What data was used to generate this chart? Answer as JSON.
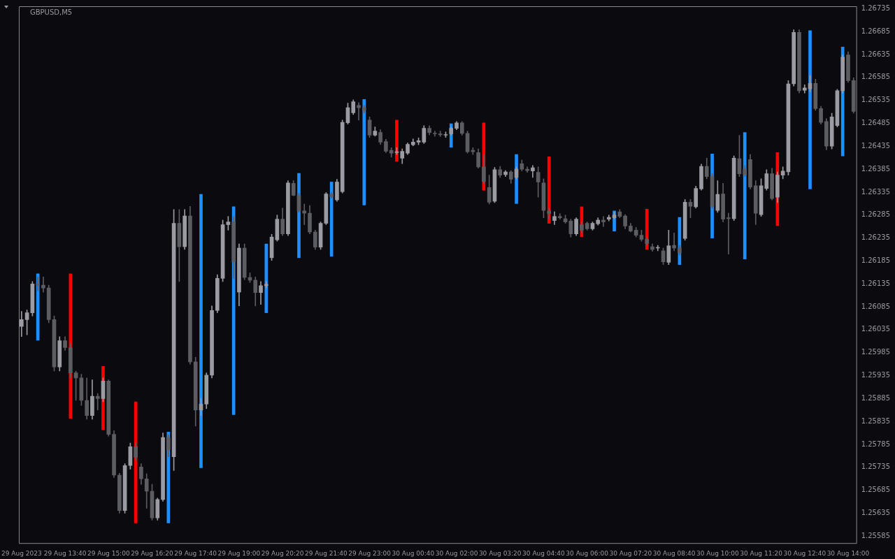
{
  "chart_data": {
    "type": "candlestick",
    "title": "GBPUSD,M5",
    "categories": [
      "29 Aug 2023",
      null,
      null,
      null,
      null,
      null,
      null,
      null,
      "29 Aug 13:40",
      null,
      null,
      null,
      null,
      null,
      null,
      null,
      "29 Aug 15:00",
      null,
      null,
      null,
      null,
      null,
      null,
      null,
      "29 Aug 16:20",
      null,
      null,
      null,
      null,
      null,
      null,
      null,
      "29 Aug 17:40",
      null,
      null,
      null,
      null,
      null,
      null,
      null,
      "29 Aug 19:00",
      null,
      null,
      null,
      null,
      null,
      null,
      null,
      "29 Aug 20:20",
      null,
      null,
      null,
      null,
      null,
      null,
      null,
      "29 Aug 21:40",
      null,
      null,
      null,
      null,
      null,
      null,
      null,
      "29 Aug 23:00",
      null,
      null,
      null,
      null,
      null,
      null,
      null,
      "30 Aug 00:40",
      null,
      null,
      null,
      null,
      null,
      null,
      null,
      "30 Aug 02:00",
      null,
      null,
      null,
      null,
      null,
      null,
      null,
      "30 Aug 03:20",
      null,
      null,
      null,
      null,
      null,
      null,
      null,
      "30 Aug 04:40",
      null,
      null,
      null,
      null,
      null,
      null,
      null,
      "30 Aug 06:00",
      null,
      null,
      null,
      null,
      null,
      null,
      null,
      "30 Aug 07:20",
      null,
      null,
      null,
      null,
      null,
      null,
      null,
      "30 Aug 08:40",
      null,
      null,
      null,
      null,
      null,
      null,
      null,
      "30 Aug 10:00",
      null,
      null,
      null,
      null,
      null,
      null,
      null,
      "30 Aug 11:20",
      null,
      null,
      null,
      null,
      null,
      null,
      null,
      "30 Aug 12:40",
      null,
      null,
      null,
      null,
      null,
      null,
      null,
      "30 Aug 14:00",
      null
    ],
    "ohlc": [
      [
        1.26042,
        1.26075,
        1.2602,
        1.26057
      ],
      [
        1.26057,
        1.26078,
        1.26024,
        1.26072
      ],
      [
        1.26072,
        1.2614,
        1.26065,
        1.26135
      ],
      [
        1.26135,
        1.2615,
        1.2612,
        1.26132
      ],
      [
        1.26132,
        1.2615,
        1.26117,
        1.26126
      ],
      [
        1.26126,
        1.26132,
        1.2605,
        1.26057
      ],
      [
        1.26057,
        1.26065,
        1.25945,
        1.25954
      ],
      [
        1.25954,
        1.2602,
        1.25945,
        1.26011
      ],
      [
        1.26011,
        1.2602,
        1.2599,
        1.25996
      ],
      [
        1.25996,
        1.26005,
        1.2593,
        1.25941
      ],
      [
        1.25941,
        1.25945,
        1.25881,
        1.2593
      ],
      [
        1.2593,
        1.25938,
        1.2587,
        1.25881
      ],
      [
        1.25881,
        1.2593,
        1.2584,
        1.25848
      ],
      [
        1.25848,
        1.25926,
        1.2584,
        1.2589
      ],
      [
        1.2589,
        1.25896,
        1.2586,
        1.25885
      ],
      [
        1.25885,
        1.2593,
        1.25878,
        1.25923
      ],
      [
        1.25923,
        1.25926,
        1.25803,
        1.25807
      ],
      [
        1.25807,
        1.25815,
        1.25713,
        1.25718
      ],
      [
        1.25718,
        1.25722,
        1.25635,
        1.25641
      ],
      [
        1.25641,
        1.25743,
        1.25635,
        1.25739
      ],
      [
        1.25739,
        1.25788,
        1.25731,
        1.2578
      ],
      [
        1.2578,
        1.25788,
        1.25751,
        1.25757
      ],
      [
        1.25736,
        1.25743,
        1.25698,
        1.2571
      ],
      [
        1.2571,
        1.25721,
        1.25646,
        1.25683
      ],
      [
        1.25683,
        1.25698,
        1.2562,
        1.25625
      ],
      [
        1.25625,
        1.25668,
        1.2562,
        1.25665
      ],
      [
        1.25665,
        1.2581,
        1.25661,
        1.258
      ],
      [
        1.258,
        1.25806,
        1.25758,
        1.25773
      ],
      [
        1.25758,
        1.26297,
        1.25728,
        1.26267
      ],
      [
        1.26267,
        1.26297,
        1.2614,
        1.26216
      ],
      [
        1.26216,
        1.26297,
        1.2621,
        1.26283
      ],
      [
        1.26283,
        1.26304,
        1.2596,
        1.25965
      ],
      [
        1.25965,
        1.25975,
        1.25825,
        1.2586
      ],
      [
        1.2586,
        1.25885,
        1.25848,
        1.25873
      ],
      [
        1.25873,
        1.25941,
        1.25863,
        1.25936
      ],
      [
        1.25936,
        1.26087,
        1.2593,
        1.26077
      ],
      [
        1.26077,
        1.26155,
        1.26072,
        1.26147
      ],
      [
        1.26147,
        1.26274,
        1.2614,
        1.26264
      ],
      [
        1.26264,
        1.26282,
        1.26252,
        1.2627
      ],
      [
        1.2627,
        1.26282,
        1.26147,
        1.26183
      ],
      [
        1.26117,
        1.26222,
        1.26087,
        1.26213
      ],
      [
        1.26213,
        1.26222,
        1.26144,
        1.26149
      ],
      [
        1.26149,
        1.26159,
        1.26138,
        1.26143
      ],
      [
        1.26143,
        1.2615,
        1.26087,
        1.26116
      ],
      [
        1.26116,
        1.2614,
        1.2609,
        1.26131
      ],
      [
        1.26131,
        1.2614,
        1.26126,
        1.26134
      ],
      [
        1.26192,
        1.26243,
        1.26186,
        1.26237
      ],
      [
        1.26231,
        1.26285,
        1.26228,
        1.26276
      ],
      [
        1.26276,
        1.263,
        1.2624,
        1.26244
      ],
      [
        1.26244,
        1.2636,
        1.2624,
        1.26355
      ],
      [
        1.26354,
        1.2636,
        1.26327,
        1.26328
      ],
      [
        1.26328,
        1.26333,
        1.26291,
        1.26294
      ],
      [
        1.26294,
        1.26309,
        1.26264,
        1.26289
      ],
      [
        1.26289,
        1.26306,
        1.26244,
        1.26248
      ],
      [
        1.26248,
        1.26252,
        1.2621,
        1.26215
      ],
      [
        1.26215,
        1.2627,
        1.2621,
        1.26267
      ],
      [
        1.26267,
        1.26334,
        1.26264,
        1.26331
      ],
      [
        1.2633,
        1.26334,
        1.26322,
        1.26325
      ],
      [
        1.26318,
        1.26363,
        1.26315,
        1.26357
      ],
      [
        1.26336,
        1.26492,
        1.26333,
        1.26487
      ],
      [
        1.26486,
        1.26529,
        1.26483,
        1.26519
      ],
      [
        1.26508,
        1.26536,
        1.26504,
        1.26532
      ],
      [
        1.26524,
        1.2653,
        1.26492,
        1.26519
      ],
      [
        1.26519,
        1.26524,
        1.26507,
        1.26513
      ],
      [
        1.26492,
        1.26499,
        1.26454,
        1.26459
      ],
      [
        1.26459,
        1.26477,
        1.26457,
        1.26468
      ],
      [
        1.26465,
        1.26471,
        1.26439,
        1.26444
      ],
      [
        1.26445,
        1.2645,
        1.26421,
        1.26424
      ],
      [
        1.26426,
        1.26432,
        1.26411,
        1.2642
      ],
      [
        1.26421,
        1.26432,
        1.26417,
        1.26423
      ],
      [
        1.26409,
        1.26429,
        1.26397,
        1.26424
      ],
      [
        1.2642,
        1.26442,
        1.26417,
        1.26439
      ],
      [
        1.26438,
        1.26451,
        1.26436,
        1.26444
      ],
      [
        1.26444,
        1.26453,
        1.26438,
        1.26447
      ],
      [
        1.26444,
        1.2648,
        1.26441,
        1.26474
      ],
      [
        1.26474,
        1.2648,
        1.2646,
        1.26465
      ],
      [
        1.26463,
        1.26468,
        1.26457,
        1.26462
      ],
      [
        1.26462,
        1.26468,
        1.26456,
        1.2646
      ],
      [
        1.26459,
        1.26466,
        1.26454,
        1.2646
      ],
      [
        1.26462,
        1.26477,
        1.26459,
        1.26474
      ],
      [
        1.26474,
        1.26489,
        1.26471,
        1.26486
      ],
      [
        1.26486,
        1.26489,
        1.26459,
        1.26463
      ],
      [
        1.26463,
        1.26468,
        1.2642,
        1.26423
      ],
      [
        1.26426,
        1.26432,
        1.26417,
        1.26423
      ],
      [
        1.26421,
        1.26429,
        1.26387,
        1.2639
      ],
      [
        1.2639,
        1.26417,
        1.26354,
        1.26358
      ],
      [
        1.26345,
        1.26372,
        1.26309,
        1.26313
      ],
      [
        1.26315,
        1.26389,
        1.26312,
        1.26384
      ],
      [
        1.26384,
        1.26391,
        1.26367,
        1.26372
      ],
      [
        1.26373,
        1.26382,
        1.26369,
        1.26379
      ],
      [
        1.26379,
        1.26382,
        1.26354,
        1.26363
      ],
      [
        1.26367,
        1.2639,
        1.26363,
        1.26385
      ],
      [
        1.26397,
        1.26405,
        1.26381,
        1.26385
      ],
      [
        1.26385,
        1.2639,
        1.26378,
        1.26382
      ],
      [
        1.26381,
        1.26393,
        1.26367,
        1.26388
      ],
      [
        1.26378,
        1.2639,
        1.26324,
        1.26357
      ],
      [
        1.26355,
        1.26364,
        1.26279,
        1.26295
      ],
      [
        1.26294,
        1.263,
        1.26276,
        1.26288
      ],
      [
        1.26273,
        1.26292,
        1.26264,
        1.26282
      ],
      [
        1.26282,
        1.26288,
        1.26276,
        1.26279
      ],
      [
        1.26277,
        1.26285,
        1.26267,
        1.2627
      ],
      [
        1.26272,
        1.26276,
        1.26237,
        1.26244
      ],
      [
        1.26244,
        1.26279,
        1.2624,
        1.26276
      ],
      [
        1.26264,
        1.2627,
        1.26246,
        1.26252
      ],
      [
        1.26267,
        1.2627,
        1.26252,
        1.26255
      ],
      [
        1.26255,
        1.2627,
        1.26252,
        1.26267
      ],
      [
        1.26266,
        1.26279,
        1.26263,
        1.26274
      ],
      [
        1.26274,
        1.26282,
        1.2626,
        1.2627
      ],
      [
        1.26276,
        1.26285,
        1.26272,
        1.2628
      ],
      [
        1.26279,
        1.26291,
        1.26276,
        1.26285
      ],
      [
        1.26292,
        1.26297,
        1.26279,
        1.26282
      ],
      [
        1.26283,
        1.26286,
        1.26255,
        1.26261
      ],
      [
        1.26261,
        1.26267,
        1.26248,
        1.2625
      ],
      [
        1.26252,
        1.26258,
        1.26237,
        1.26241
      ],
      [
        1.26241,
        1.26252,
        1.26228,
        1.26232
      ],
      [
        1.26232,
        1.26237,
        1.26219,
        1.26223
      ],
      [
        1.26216,
        1.26222,
        1.26206,
        1.2621
      ],
      [
        1.26213,
        1.26219,
        1.26207,
        1.26213
      ],
      [
        1.26207,
        1.26213,
        1.26177,
        1.26183
      ],
      [
        1.26182,
        1.26252,
        1.26177,
        1.26218
      ],
      [
        1.26219,
        1.26246,
        1.26207,
        1.26213
      ],
      [
        1.26213,
        1.26219,
        1.26198,
        1.26203
      ],
      [
        1.26234,
        1.26319,
        1.2623,
        1.26313
      ],
      [
        1.26313,
        1.26319,
        1.26279,
        1.26304
      ],
      [
        1.26303,
        1.26348,
        1.263,
        1.26343
      ],
      [
        1.26342,
        1.26396,
        1.26339,
        1.26391
      ],
      [
        1.26391,
        1.26409,
        1.26364,
        1.26369
      ],
      [
        1.26369,
        1.26375,
        1.263,
        1.26304
      ],
      [
        1.26295,
        1.2636,
        1.26291,
        1.2633
      ],
      [
        1.26331,
        1.26354,
        1.2627,
        1.26276
      ],
      [
        1.26279,
        1.26289,
        1.262,
        1.26277
      ],
      [
        1.26277,
        1.26414,
        1.26273,
        1.26409
      ],
      [
        1.26408,
        1.26459,
        1.26369,
        1.26375
      ],
      [
        1.26385,
        1.26393,
        1.26369,
        1.26373
      ],
      [
        1.26406,
        1.26417,
        1.26342,
        1.26346
      ],
      [
        1.26349,
        1.2636,
        1.26264,
        1.26289
      ],
      [
        1.26286,
        1.26364,
        1.26282,
        1.26349
      ],
      [
        1.26343,
        1.26384,
        1.26339,
        1.26375
      ],
      [
        1.26375,
        1.26387,
        1.26318,
        1.26321
      ],
      [
        1.26324,
        1.26379,
        1.26312,
        1.26372
      ],
      [
        1.26372,
        1.2639,
        1.26364,
        1.26381
      ],
      [
        1.26379,
        1.26578,
        1.26372,
        1.26571
      ],
      [
        1.26571,
        1.26689,
        1.26566,
        1.26683
      ],
      [
        1.26683,
        1.26689,
        1.26551,
        1.26556
      ],
      [
        1.26557,
        1.26569,
        1.26551,
        1.26562
      ],
      [
        1.2656,
        1.26589,
        1.26554,
        1.26572
      ],
      [
        1.26572,
        1.26581,
        1.26513,
        1.26517
      ],
      [
        1.26517,
        1.26522,
        1.26483,
        1.26487
      ],
      [
        1.26489,
        1.26495,
        1.26427,
        1.26435
      ],
      [
        1.26435,
        1.26507,
        1.26429,
        1.26499
      ],
      [
        1.2648,
        1.26559,
        1.26477,
        1.26556
      ],
      [
        1.26556,
        1.26634,
        1.26551,
        1.26629
      ],
      [
        1.26634,
        1.26641,
        1.26574,
        1.26578
      ],
      [
        1.26578,
        1.26584,
        1.26507,
        1.26511
      ]
    ],
    "colors": [
      "#9b9ba4",
      "#9b9ba4",
      "#9b9ba4",
      "#5c5c63",
      "#5c5c63",
      "#5c5c63",
      "#5c5c63",
      "#9b9ba4",
      "#5c5c63",
      "#5c5c63",
      "#5c5c63",
      "#5c5c63",
      "#5c5c63",
      "#9b9ba4",
      "#5c5c63",
      "#9b9ba4",
      "#5c5c63",
      "#5c5c63",
      "#5c5c63",
      "#9b9ba4",
      "#9b9ba4",
      "#5c5c63",
      "#5c5c63",
      "#5c5c63",
      "#5c5c63",
      "#9b9ba4",
      "#9b9ba4",
      "#5c5c63",
      "#9b9ba4",
      "#5c5c63",
      "#9b9ba4",
      "#5c5c63",
      "#5c5c63",
      "#9b9ba4",
      "#9b9ba4",
      "#9b9ba4",
      "#9b9ba4",
      "#9b9ba4",
      "#9b9ba4",
      "#5c5c63",
      "#9b9ba4",
      "#5c5c63",
      "#5c5c63",
      "#5c5c63",
      "#9b9ba4",
      "#9b9ba4",
      "#9b9ba4",
      "#9b9ba4",
      "#5c5c63",
      "#9b9ba4",
      "#5c5c63",
      "#5c5c63",
      "#5c5c63",
      "#5c5c63",
      "#5c5c63",
      "#9b9ba4",
      "#9b9ba4",
      "#5c5c63",
      "#9b9ba4",
      "#9b9ba4",
      "#9b9ba4",
      "#9b9ba4",
      "#5c5c63",
      "#5c5c63",
      "#5c5c63",
      "#9b9ba4",
      "#5c5c63",
      "#5c5c63",
      "#5c5c63",
      "#9b9ba4",
      "#9b9ba4",
      "#9b9ba4",
      "#9b9ba4",
      "#9b9ba4",
      "#9b9ba4",
      "#5c5c63",
      "#5c5c63",
      "#5c5c63",
      "#9b9ba4",
      "#9b9ba4",
      "#9b9ba4",
      "#5c5c63",
      "#5c5c63",
      "#5c5c63",
      "#5c5c63",
      "#5c5c63",
      "#5c5c63",
      "#9b9ba4",
      "#5c5c63",
      "#9b9ba4",
      "#5c5c63",
      "#9b9ba4",
      "#5c5c63",
      "#5c5c63",
      "#9b9ba4",
      "#5c5c63",
      "#5c5c63",
      "#5c5c63",
      "#9b9ba4",
      "#5c5c63",
      "#5c5c63",
      "#5c5c63",
      "#9b9ba4",
      "#5c5c63",
      "#5c5c63",
      "#9b9ba4",
      "#9b9ba4",
      "#5c5c63",
      "#9b9ba4",
      "#9b9ba4",
      "#5c5c63",
      "#5c5c63",
      "#5c5c63",
      "#5c5c63",
      "#5c5c63",
      "#5c5c63",
      "#5c5c63",
      "#9b9ba4",
      "#5c5c63",
      "#9b9ba4",
      "#5c5c63",
      "#5c5c63",
      "#9b9ba4",
      "#5c5c63",
      "#9b9ba4",
      "#9b9ba4",
      "#5c5c63",
      "#5c5c63",
      "#9b9ba4",
      "#5c5c63",
      "#5c5c63",
      "#9b9ba4",
      "#5c5c63",
      "#5c5c63",
      "#5c5c63",
      "#5c5c63",
      "#9b9ba4",
      "#9b9ba4",
      "#5c5c63",
      "#9b9ba4",
      "#9b9ba4",
      "#9b9ba4",
      "#9b9ba4",
      "#5c5c63",
      "#9b9ba4",
      "#9b9ba4",
      "#5c5c63",
      "#5c5c63",
      "#5c5c63",
      "#9b9ba4",
      "#9b9ba4",
      "#9b9ba4",
      "#5c5c63",
      "#5c5c63"
    ],
    "series": [
      {
        "type": "bar",
        "base": [
          null,
          null,
          null,
          1.26012,
          null,
          null,
          null,
          null,
          null,
          1.25842,
          null,
          null,
          null,
          null,
          null,
          1.25817,
          null,
          null,
          null,
          null,
          null,
          1.25614,
          null,
          null,
          null,
          null,
          null,
          1.25614,
          null,
          null,
          null,
          null,
          null,
          1.25734,
          null,
          null,
          null,
          null,
          null,
          1.2585,
          null,
          null,
          null,
          null,
          null,
          1.26072,
          null,
          null,
          null,
          null,
          null,
          1.26192,
          null,
          null,
          null,
          null,
          null,
          1.26195,
          null,
          null,
          null,
          null,
          null,
          1.26307,
          null,
          null,
          null,
          null,
          null,
          1.26402,
          null,
          null,
          null,
          null,
          null,
          null,
          null,
          null,
          null,
          1.26433,
          null,
          null,
          null,
          null,
          null,
          1.26339,
          null,
          null,
          null,
          null,
          null,
          1.2631,
          null,
          null,
          null,
          null,
          null,
          1.26267,
          null,
          null,
          null,
          null,
          null,
          1.26238,
          null,
          null,
          null,
          null,
          null,
          1.2625,
          null,
          null,
          null,
          null,
          null,
          1.2621,
          null,
          null,
          null,
          null,
          null,
          1.26177,
          null,
          null,
          null,
          null,
          null,
          1.26235,
          null,
          null,
          null,
          null,
          null,
          1.26189,
          null,
          null,
          null,
          null,
          null,
          1.26262,
          null,
          null,
          null,
          null,
          null,
          1.26342,
          null,
          null,
          null,
          null,
          null,
          1.26414,
          null,
          null
        ],
        "values": [
          null,
          null,
          null,
          0.00145,
          null,
          null,
          null,
          null,
          null,
          0.00315,
          null,
          null,
          null,
          null,
          null,
          0.00138,
          null,
          null,
          null,
          null,
          null,
          0.00264,
          null,
          null,
          null,
          null,
          null,
          0.00198,
          null,
          null,
          null,
          null,
          null,
          0.00596,
          null,
          null,
          null,
          null,
          null,
          0.00453,
          null,
          null,
          null,
          null,
          null,
          0.0015,
          null,
          null,
          null,
          null,
          null,
          0.00184,
          null,
          null,
          null,
          null,
          null,
          0.00162,
          null,
          null,
          null,
          null,
          null,
          0.0023,
          null,
          null,
          null,
          null,
          null,
          0.0009,
          null,
          null,
          null,
          null,
          null,
          null,
          null,
          null,
          null,
          0.00051,
          null,
          null,
          null,
          null,
          null,
          0.00147,
          null,
          null,
          null,
          null,
          null,
          0.00107,
          null,
          null,
          null,
          null,
          null,
          0.00145,
          null,
          null,
          null,
          null,
          null,
          0.00065,
          null,
          null,
          null,
          null,
          null,
          0.00044,
          null,
          null,
          null,
          null,
          null,
          0.00088,
          null,
          null,
          null,
          null,
          null,
          0.00103,
          null,
          null,
          null,
          null,
          null,
          0.00183,
          null,
          null,
          null,
          null,
          null,
          0.00276,
          null,
          null,
          null,
          null,
          null,
          0.00159,
          null,
          null,
          null,
          null,
          null,
          0.00345,
          null,
          null,
          null,
          null,
          null,
          0.00237,
          null,
          null
        ],
        "colors": [
          null,
          null,
          null,
          "#1e8fff",
          null,
          null,
          null,
          null,
          null,
          "#ff0000",
          null,
          null,
          null,
          null,
          null,
          "#ff0000",
          null,
          null,
          null,
          null,
          null,
          "#ff0000",
          null,
          null,
          null,
          null,
          null,
          "#1e8fff",
          null,
          null,
          null,
          null,
          null,
          "#1e8fff",
          null,
          null,
          null,
          null,
          null,
          "#1e8fff",
          null,
          null,
          null,
          null,
          null,
          "#1e8fff",
          null,
          null,
          null,
          null,
          null,
          "#1e8fff",
          null,
          null,
          null,
          null,
          null,
          "#1e8fff",
          null,
          null,
          null,
          null,
          null,
          "#1e8fff",
          null,
          null,
          null,
          null,
          null,
          "#ff0000",
          null,
          null,
          null,
          null,
          null,
          null,
          null,
          null,
          null,
          "#1e8fff",
          null,
          null,
          null,
          null,
          null,
          "#ff0000",
          null,
          null,
          null,
          null,
          null,
          "#1e8fff",
          null,
          null,
          null,
          null,
          null,
          "#ff0000",
          null,
          null,
          null,
          null,
          null,
          "#ff0000",
          null,
          null,
          null,
          null,
          null,
          "#1e8fff",
          null,
          null,
          null,
          null,
          null,
          "#ff0000",
          null,
          null,
          null,
          null,
          null,
          "#1e8fff",
          null,
          null,
          null,
          null,
          null,
          "#1e8fff",
          null,
          null,
          null,
          null,
          null,
          "#1e8fff",
          null,
          null,
          null,
          null,
          null,
          "#ff0000",
          null,
          null,
          null,
          null,
          null,
          "#1e8fff",
          null,
          null,
          null,
          null,
          null,
          "#1e8fff",
          null,
          null
        ]
      }
    ],
    "ylim": [
      1.2557,
      1.2674
    ],
    "yticks": [
      1.25585,
      1.25635,
      1.25685,
      1.25735,
      1.25785,
      1.25835,
      1.25885,
      1.25935,
      1.25985,
      1.26035,
      1.26085,
      1.26135,
      1.26185,
      1.26235,
      1.26285,
      1.26335,
      1.26385,
      1.26435,
      1.26485,
      1.26535,
      1.26585,
      1.26635,
      1.26685,
      1.26735
    ]
  }
}
